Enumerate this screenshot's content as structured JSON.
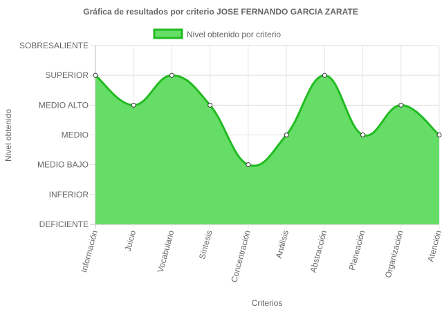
{
  "chart_data": {
    "type": "area",
    "title": "Gráfica de resultados por criterio JOSE FERNANDO GARCIA ZARATE",
    "xlabel": "Criterios",
    "ylabel": "Nivel obtenido",
    "y_levels": [
      "DEFICIENTE",
      "INFERIOR",
      "MEDIO BAJO",
      "MEDIO",
      "MEDIO ALTO",
      "SUPERIOR",
      "SOBRESALIENTE"
    ],
    "ylim": [
      0,
      6
    ],
    "categories": [
      "Información",
      "Juicio",
      "Vocabulario",
      "Síntesis",
      "Concentración",
      "Análisis",
      "Abstracción",
      "Planeación",
      "Organización",
      "Atención"
    ],
    "series": [
      {
        "name": "Nivel obtenido por criterio",
        "values": [
          5,
          4,
          5,
          4,
          2,
          3,
          5,
          3,
          4,
          3
        ],
        "fill_color": "#66dd66",
        "line_color": "#22bb22"
      }
    ],
    "legend_position": "top",
    "grid": true
  }
}
